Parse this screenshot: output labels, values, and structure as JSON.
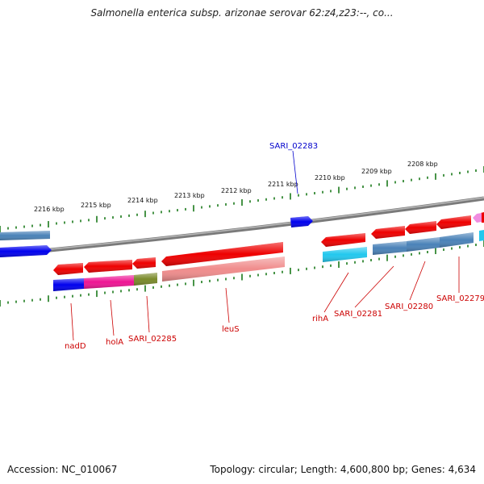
{
  "title": "Salmonella enterica subsp. arizonae serovar 62:z4,z23:--, co...",
  "footer": {
    "accession": "Accession: NC_010067",
    "summary": "Topology: circular; Length: 4,600,800 bp; Genes: 4,634"
  },
  "scale_ticks": [
    {
      "label": "2216 kbp"
    },
    {
      "label": "2215 kbp"
    },
    {
      "label": "2214 kbp"
    },
    {
      "label": "2213 kbp"
    },
    {
      "label": "2212 kbp"
    },
    {
      "label": "2211 kbp"
    },
    {
      "label": "2210 kbp"
    },
    {
      "label": "2209 kbp"
    },
    {
      "label": "2208 kbp"
    }
  ],
  "gene_labels": [
    {
      "text": "SARI_02283",
      "color": "#0000cc"
    },
    {
      "text": "nadD",
      "color": "#cc0000"
    },
    {
      "text": "holA",
      "color": "#cc0000"
    },
    {
      "text": "SARI_02285",
      "color": "#cc0000"
    },
    {
      "text": "leuS",
      "color": "#cc0000"
    },
    {
      "text": "rihA",
      "color": "#cc0000"
    },
    {
      "text": "SARI_02281",
      "color": "#cc0000"
    },
    {
      "text": "SARI_02280",
      "color": "#cc0000"
    },
    {
      "text": "SARI_02279",
      "color": "#cc0000"
    }
  ],
  "colors": {
    "backbone": "#8a8a8a",
    "tick": "#1a7a1a",
    "gene_red": "#ee0000",
    "gene_pink": "#f08c8c",
    "gene_blue": "#0000ee",
    "gene_steel": "#4a82b8",
    "gene_cyan": "#22c8ee",
    "gene_magenta": "#ee1493",
    "gene_olive": "#7a8a2a"
  }
}
